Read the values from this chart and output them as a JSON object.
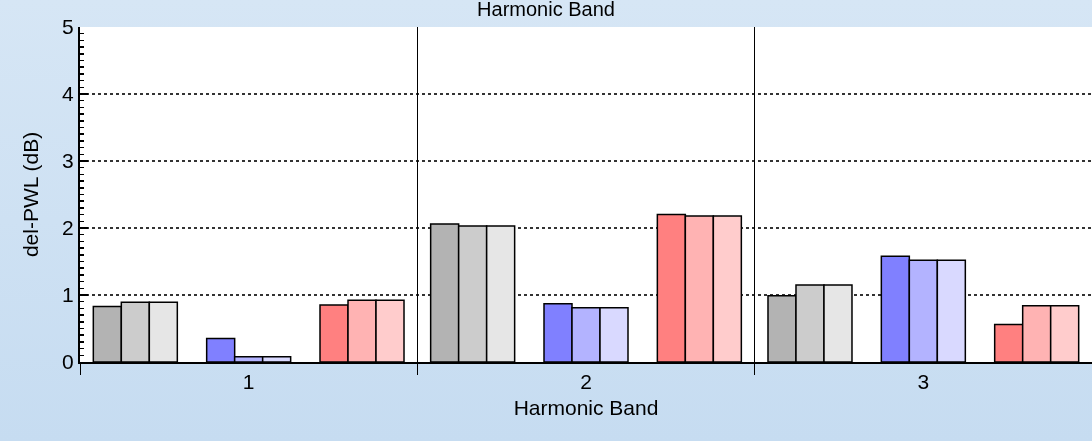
{
  "chart_data": {
    "type": "bar",
    "title": "Harmonic Band",
    "xlabel": "Harmonic Band",
    "ylabel": "del-PWL (dB)",
    "categories": [
      "1",
      "2",
      "3"
    ],
    "series": [
      {
        "color": "#b3b3b3",
        "values": [
          0.83,
          2.06,
          0.99
        ]
      },
      {
        "color": "#cccccc",
        "values": [
          0.89,
          2.03,
          1.15
        ]
      },
      {
        "color": "#e6e6e6",
        "values": [
          0.89,
          2.03,
          1.15
        ]
      },
      {
        "color": "#8080ff",
        "values": [
          0.35,
          0.87,
          1.58
        ]
      },
      {
        "color": "#b3b3ff",
        "values": [
          0.08,
          0.81,
          1.52
        ]
      },
      {
        "color": "#d9d9ff",
        "values": [
          0.08,
          0.81,
          1.52
        ]
      },
      {
        "color": "#ff8080",
        "values": [
          0.85,
          2.2,
          0.56
        ]
      },
      {
        "color": "#ffb3b3",
        "values": [
          0.92,
          2.18,
          0.84
        ]
      },
      {
        "color": "#ffcccc",
        "values": [
          0.92,
          2.18,
          0.84
        ]
      }
    ],
    "ylim": [
      0,
      5
    ],
    "yticks": [
      0,
      1,
      2,
      3,
      4,
      5
    ],
    "grid": "y"
  }
}
